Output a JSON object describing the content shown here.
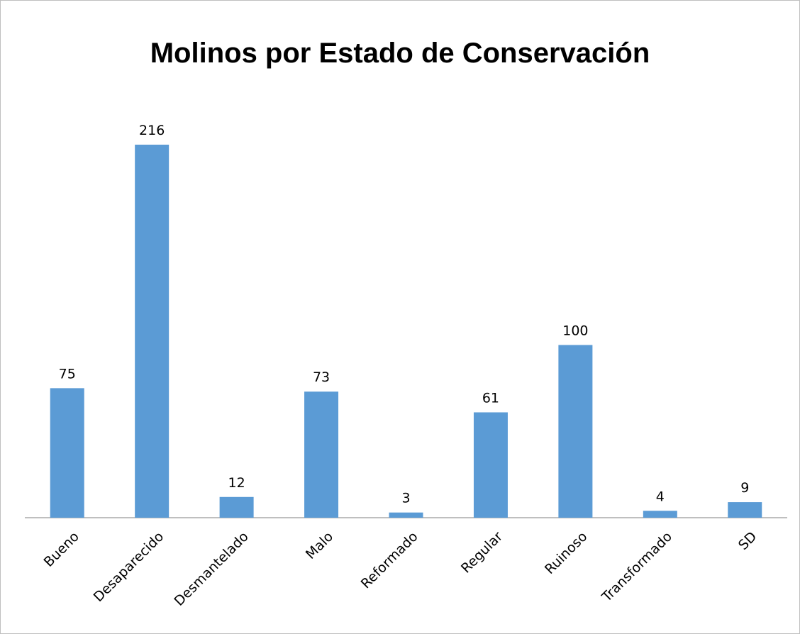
{
  "chart_data": {
    "type": "bar",
    "title": "Molinos por Estado de Conservación",
    "categories": [
      "Bueno",
      "Desaparecido",
      "Desmantelado",
      "Malo",
      "Reformado",
      "Regular",
      "Ruinoso",
      "Transformado",
      "SD"
    ],
    "values": [
      75,
      216,
      12,
      73,
      3,
      61,
      100,
      4,
      9
    ],
    "color": "#5b9bd5"
  }
}
